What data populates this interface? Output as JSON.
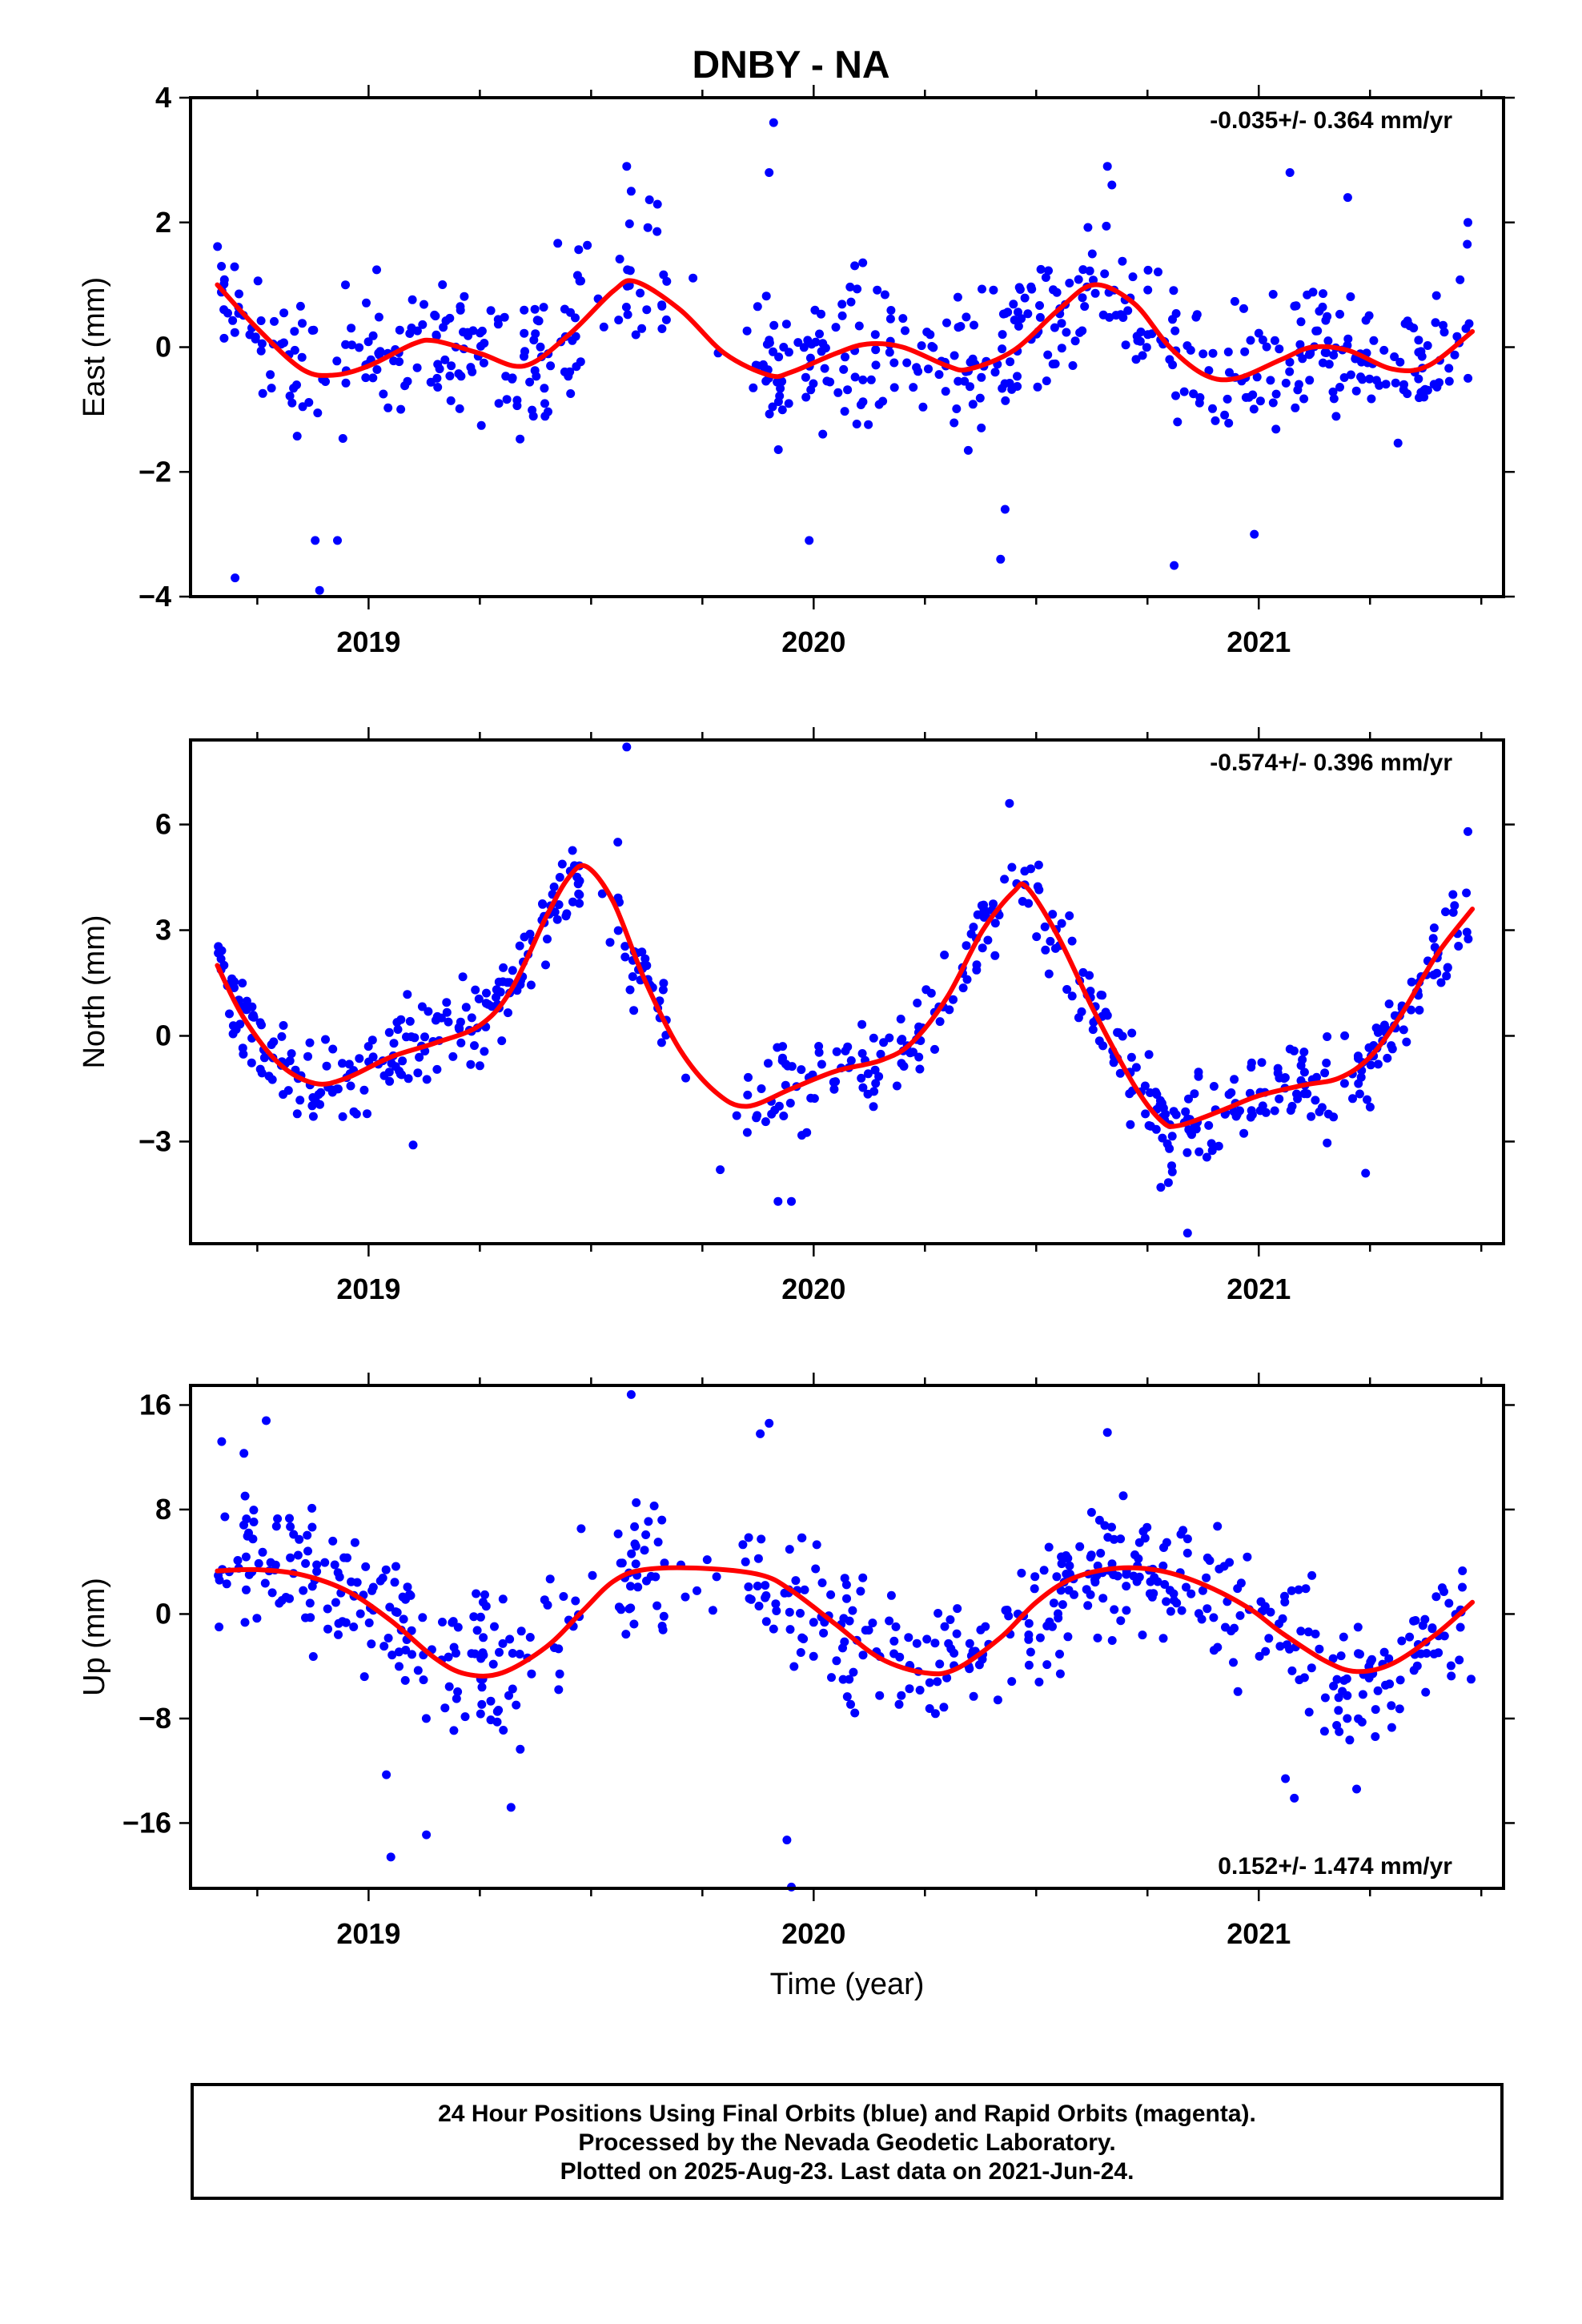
{
  "title": "DNBY - NA",
  "xlabel": "Time (year)",
  "footer": {
    "line1": "24 Hour Positions Using Final Orbits (blue) and Rapid Orbits (magenta).",
    "line2": "Processed by the Nevada Geodetic Laboratory.",
    "line3": "Plotted on 2025-Aug-23. Last data on 2021-Jun-24."
  },
  "colors": {
    "points": "#0000ff",
    "fit": "#ff0000"
  },
  "chart_data": [
    {
      "type": "scatter",
      "component": "East",
      "ylabel": "East (mm)",
      "rate_text": "-0.035+/- 0.364 mm/yr",
      "rate_position": "top-right",
      "xlim": [
        2018.6,
        2021.55
      ],
      "ylim": [
        -4,
        4
      ],
      "yticks": [
        -4,
        -2,
        0,
        2,
        4
      ],
      "ytick_labels": [
        "−4",
        "−2",
        "0",
        "2",
        "4"
      ],
      "xticks": [
        2019,
        2020,
        2021
      ],
      "xtick_labels": [
        "2019",
        "2020",
        "2021"
      ],
      "data_start": 2018.66,
      "data_end": 2021.48,
      "point_count": 640,
      "outliers": [
        [
          2018.7,
          -3.7
        ],
        [
          2018.89,
          -3.9
        ],
        [
          2018.88,
          -3.1
        ],
        [
          2018.93,
          -3.1
        ],
        [
          2019.99,
          -3.1
        ],
        [
          2020.81,
          -3.5
        ],
        [
          2020.99,
          -3.0
        ],
        [
          2020.42,
          -3.4
        ],
        [
          2020.43,
          -2.6
        ],
        [
          2019.58,
          2.9
        ],
        [
          2019.59,
          2.5
        ],
        [
          2019.91,
          3.6
        ],
        [
          2019.9,
          2.8
        ],
        [
          2020.66,
          2.9
        ],
        [
          2020.67,
          2.6
        ],
        [
          2021.07,
          2.8
        ],
        [
          2021.2,
          2.4
        ],
        [
          2021.47,
          2.0
        ]
      ],
      "fit_curve": [
        [
          2018.66,
          1.0
        ],
        [
          2018.75,
          0.3
        ],
        [
          2018.85,
          -0.35
        ],
        [
          2018.92,
          -0.45
        ],
        [
          2019.0,
          -0.3
        ],
        [
          2019.1,
          0.05
        ],
        [
          2019.15,
          0.1
        ],
        [
          2019.25,
          -0.1
        ],
        [
          2019.35,
          -0.3
        ],
        [
          2019.45,
          0.2
        ],
        [
          2019.55,
          0.9
        ],
        [
          2019.6,
          1.05
        ],
        [
          2019.7,
          0.6
        ],
        [
          2019.8,
          -0.1
        ],
        [
          2019.9,
          -0.45
        ],
        [
          2019.95,
          -0.4
        ],
        [
          2020.05,
          -0.1
        ],
        [
          2020.12,
          0.05
        ],
        [
          2020.2,
          0.0
        ],
        [
          2020.3,
          -0.3
        ],
        [
          2020.35,
          -0.35
        ],
        [
          2020.45,
          -0.05
        ],
        [
          2020.55,
          0.6
        ],
        [
          2020.63,
          1.0
        ],
        [
          2020.72,
          0.7
        ],
        [
          2020.8,
          0.0
        ],
        [
          2020.88,
          -0.45
        ],
        [
          2020.95,
          -0.5
        ],
        [
          2021.05,
          -0.2
        ],
        [
          2021.12,
          0.0
        ],
        [
          2021.2,
          -0.05
        ],
        [
          2021.3,
          -0.35
        ],
        [
          2021.38,
          -0.3
        ],
        [
          2021.48,
          0.25
        ]
      ]
    },
    {
      "type": "scatter",
      "component": "North",
      "ylabel": "North (mm)",
      "rate_text": "-0.574+/- 0.396 mm/yr",
      "rate_position": "top-right",
      "xlim": [
        2018.6,
        2021.55
      ],
      "ylim": [
        -5.9,
        8.4
      ],
      "yticks": [
        -3,
        0,
        3,
        6
      ],
      "ytick_labels": [
        "−3",
        "0",
        "3",
        "6"
      ],
      "xticks": [
        2019,
        2020,
        2021
      ],
      "xtick_labels": [
        "2019",
        "2020",
        "2021"
      ],
      "data_start": 2018.66,
      "data_end": 2021.48,
      "point_count": 640,
      "outliers": [
        [
          2019.58,
          8.2
        ],
        [
          2020.44,
          6.6
        ],
        [
          2019.56,
          5.5
        ],
        [
          2021.47,
          5.8
        ],
        [
          2020.84,
          -5.6
        ],
        [
          2019.92,
          -4.7
        ],
        [
          2019.95,
          -4.7
        ],
        [
          2020.78,
          -4.3
        ],
        [
          2021.24,
          -3.9
        ],
        [
          2019.79,
          -3.8
        ],
        [
          2019.1,
          -3.1
        ]
      ],
      "fit_curve": [
        [
          2018.66,
          2.0
        ],
        [
          2018.72,
          0.5
        ],
        [
          2018.8,
          -0.8
        ],
        [
          2018.88,
          -1.35
        ],
        [
          2018.95,
          -1.2
        ],
        [
          2019.05,
          -0.6
        ],
        [
          2019.15,
          -0.2
        ],
        [
          2019.25,
          0.3
        ],
        [
          2019.32,
          1.3
        ],
        [
          2019.4,
          3.4
        ],
        [
          2019.45,
          4.5
        ],
        [
          2019.49,
          4.8
        ],
        [
          2019.55,
          3.8
        ],
        [
          2019.62,
          1.6
        ],
        [
          2019.7,
          -0.4
        ],
        [
          2019.78,
          -1.6
        ],
        [
          2019.85,
          -2.0
        ],
        [
          2019.95,
          -1.5
        ],
        [
          2020.05,
          -1.0
        ],
        [
          2020.15,
          -0.7
        ],
        [
          2020.22,
          -0.2
        ],
        [
          2020.3,
          1.1
        ],
        [
          2020.38,
          3.0
        ],
        [
          2020.45,
          4.1
        ],
        [
          2020.48,
          4.2
        ],
        [
          2020.55,
          2.8
        ],
        [
          2020.63,
          0.7
        ],
        [
          2020.72,
          -1.4
        ],
        [
          2020.78,
          -2.4
        ],
        [
          2020.82,
          -2.55
        ],
        [
          2020.92,
          -2.1
        ],
        [
          2021.0,
          -1.7
        ],
        [
          2021.1,
          -1.4
        ],
        [
          2021.18,
          -1.2
        ],
        [
          2021.25,
          -0.6
        ],
        [
          2021.32,
          0.6
        ],
        [
          2021.4,
          2.3
        ],
        [
          2021.48,
          3.6
        ]
      ]
    },
    {
      "type": "scatter",
      "component": "Up",
      "ylabel": "Up (mm)",
      "rate_text": "0.152+/- 1.474 mm/yr",
      "rate_position": "bottom-right",
      "xlim": [
        2018.6,
        2021.55
      ],
      "ylim": [
        -21,
        17.5
      ],
      "yticks": [
        -16,
        -8,
        0,
        8,
        16
      ],
      "ytick_labels": [
        "−16",
        "−8",
        "0",
        "8",
        "16"
      ],
      "xticks": [
        2019,
        2020,
        2021
      ],
      "xtick_labels": [
        "2019",
        "2020",
        "2021"
      ],
      "data_start": 2018.66,
      "data_end": 2021.48,
      "point_count": 640,
      "outliers": [
        [
          2019.59,
          16.8
        ],
        [
          2018.67,
          13.2
        ],
        [
          2018.72,
          12.3
        ],
        [
          2018.77,
          14.8
        ],
        [
          2019.9,
          14.6
        ],
        [
          2019.88,
          13.8
        ],
        [
          2020.66,
          13.9
        ],
        [
          2019.95,
          -20.9
        ],
        [
          2019.94,
          -17.3
        ],
        [
          2019.05,
          -18.6
        ],
        [
          2019.13,
          -16.9
        ],
        [
          2019.32,
          -14.8
        ],
        [
          2021.08,
          -14.1
        ],
        [
          2021.22,
          -13.4
        ],
        [
          2021.06,
          -12.6
        ],
        [
          2019.04,
          -12.3
        ]
      ],
      "fit_curve": [
        [
          2018.66,
          3.3
        ],
        [
          2018.75,
          3.4
        ],
        [
          2018.85,
          3.0
        ],
        [
          2018.95,
          1.8
        ],
        [
          2019.05,
          -0.5
        ],
        [
          2019.15,
          -3.4
        ],
        [
          2019.22,
          -4.6
        ],
        [
          2019.3,
          -4.5
        ],
        [
          2019.4,
          -2.5
        ],
        [
          2019.48,
          0.2
        ],
        [
          2019.55,
          2.5
        ],
        [
          2019.62,
          3.4
        ],
        [
          2019.75,
          3.5
        ],
        [
          2019.88,
          3.0
        ],
        [
          2019.95,
          1.8
        ],
        [
          2020.05,
          -0.8
        ],
        [
          2020.15,
          -3.4
        ],
        [
          2020.25,
          -4.5
        ],
        [
          2020.32,
          -4.2
        ],
        [
          2020.42,
          -1.8
        ],
        [
          2020.5,
          0.9
        ],
        [
          2020.58,
          2.7
        ],
        [
          2020.68,
          3.5
        ],
        [
          2020.78,
          3.3
        ],
        [
          2020.88,
          2.2
        ],
        [
          2020.98,
          0.4
        ],
        [
          2021.05,
          -1.4
        ],
        [
          2021.15,
          -3.6
        ],
        [
          2021.22,
          -4.4
        ],
        [
          2021.3,
          -3.8
        ],
        [
          2021.4,
          -1.5
        ],
        [
          2021.48,
          0.9
        ]
      ]
    }
  ]
}
